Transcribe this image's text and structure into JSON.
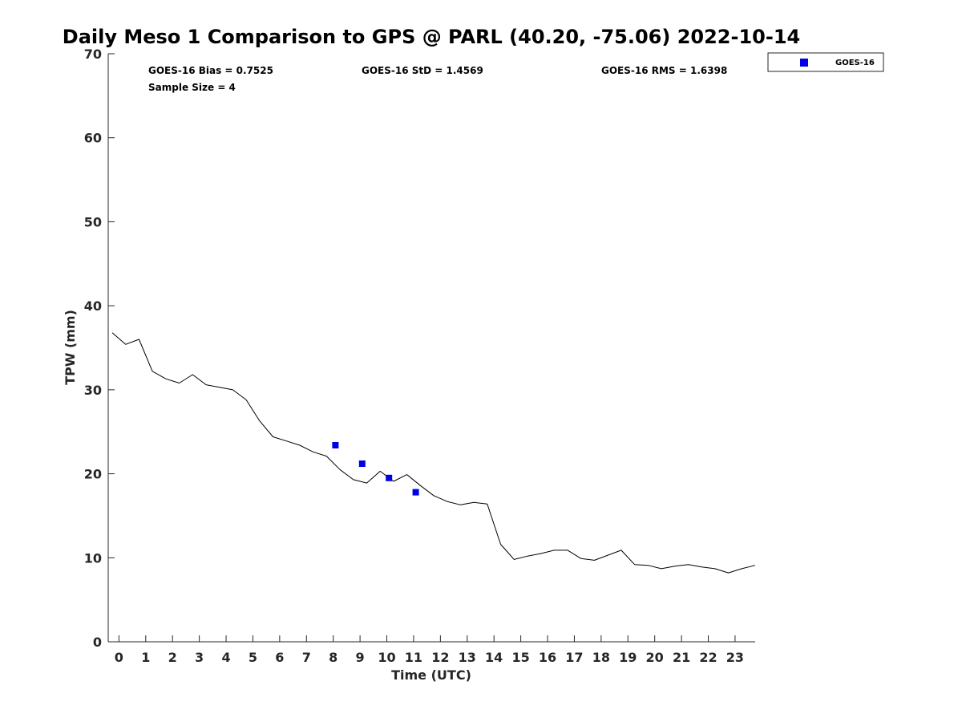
{
  "chart_data": {
    "type": "line",
    "title": "Daily Meso 1 Comparison to GPS @ PARL (40.20, -75.06) 2022-10-14",
    "xlabel": "Time (UTC)",
    "ylabel": "TPW (mm)",
    "xlim": [
      -0.4,
      23.75
    ],
    "ylim": [
      0,
      70
    ],
    "x_ticks": [
      0,
      1,
      2,
      3,
      4,
      5,
      6,
      7,
      8,
      9,
      10,
      11,
      12,
      13,
      14,
      15,
      16,
      17,
      18,
      19,
      20,
      21,
      22,
      23
    ],
    "y_ticks": [
      0,
      10,
      20,
      30,
      40,
      50,
      60,
      70
    ],
    "grid": false,
    "legend_placement": "top-right outside",
    "stats": {
      "bias": "GOES-16 Bias = 0.7525",
      "std": "GOES-16 StD = 1.4569",
      "rms": "GOES-16 RMS = 1.6398",
      "sample_size": "Sample Size = 4"
    },
    "series": [
      {
        "name": "",
        "kind": "line",
        "color": "#000000",
        "x": [
          -0.25,
          0.25,
          0.75,
          1.25,
          1.75,
          2.25,
          2.75,
          3.25,
          3.75,
          4.25,
          4.75,
          5.25,
          5.75,
          6.25,
          6.75,
          7.25,
          7.75,
          8.25,
          8.75,
          9.25,
          9.75,
          10.25,
          10.75,
          11.25,
          11.75,
          12.25,
          12.75,
          13.25,
          13.75,
          14.25,
          14.75,
          15.25,
          15.75,
          16.25,
          16.75,
          17.25,
          17.75,
          18.25,
          18.75,
          19.25,
          19.75,
          20.25,
          20.75,
          21.25,
          21.75,
          22.25,
          22.75,
          23.25,
          23.75
        ],
        "y": [
          36.8,
          35.4,
          36.0,
          32.2,
          31.3,
          30.8,
          31.8,
          30.6,
          30.3,
          30.0,
          28.8,
          26.3,
          24.4,
          23.9,
          23.4,
          22.6,
          22.1,
          20.5,
          19.3,
          18.9,
          20.3,
          19.1,
          19.9,
          18.6,
          17.4,
          16.7,
          16.3,
          16.6,
          16.4,
          11.6,
          9.8,
          10.2,
          10.5,
          10.9,
          10.9,
          9.9,
          9.7,
          10.3,
          10.9,
          9.2,
          9.1,
          8.7,
          9.0,
          9.2,
          8.9,
          8.7,
          8.2,
          8.7,
          9.1
        ]
      },
      {
        "name": "GOES-16",
        "kind": "scatter",
        "color": "#0000e6",
        "marker": "square",
        "x": [
          8.08,
          9.08,
          10.08,
          11.08
        ],
        "y": [
          23.4,
          21.2,
          19.5,
          17.8
        ]
      }
    ]
  }
}
